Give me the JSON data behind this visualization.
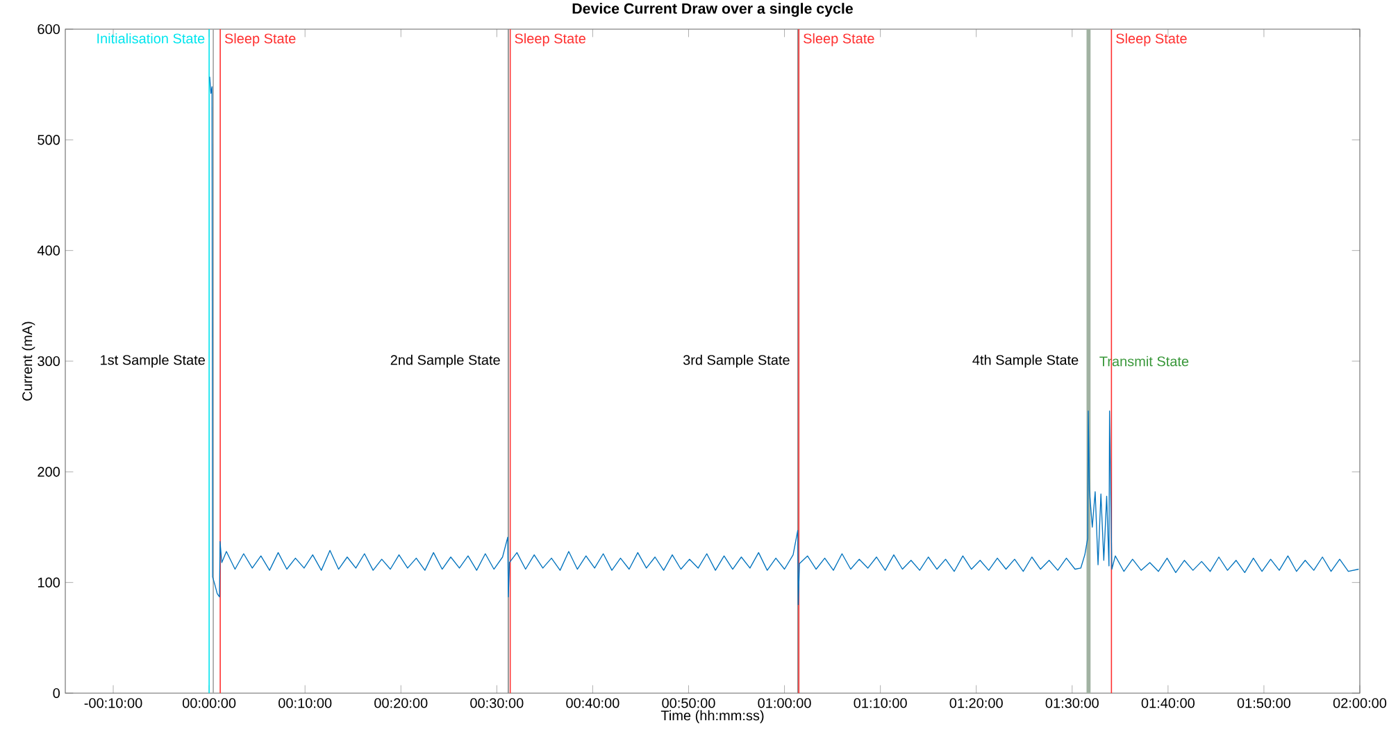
{
  "chart_data": {
    "type": "line",
    "title": "Device Current Draw over a single cycle",
    "xlabel": "Time (hh:mm:ss)",
    "ylabel": "Current (mA)",
    "xlim": [
      -0.25,
      2.0
    ],
    "ylim": [
      0,
      600
    ],
    "xticks": [
      {
        "value": -0.16667,
        "label": "-00:10:00"
      },
      {
        "value": 0,
        "label": "00:00:00"
      },
      {
        "value": 0.16667,
        "label": "00:10:00"
      },
      {
        "value": 0.33333,
        "label": "00:20:00"
      },
      {
        "value": 0.5,
        "label": "00:30:00"
      },
      {
        "value": 0.66667,
        "label": "00:40:00"
      },
      {
        "value": 0.83333,
        "label": "00:50:00"
      },
      {
        "value": 1.0,
        "label": "01:00:00"
      },
      {
        "value": 1.16667,
        "label": "01:10:00"
      },
      {
        "value": 1.33333,
        "label": "01:20:00"
      },
      {
        "value": 1.5,
        "label": "01:30:00"
      },
      {
        "value": 1.66667,
        "label": "01:40:00"
      },
      {
        "value": 1.83333,
        "label": "01:50:00"
      },
      {
        "value": 2.0,
        "label": "02:00:00"
      }
    ],
    "yticks": [
      0,
      100,
      200,
      300,
      400,
      500,
      600
    ],
    "grid": false,
    "marker": "none",
    "line_style": "solid",
    "series": [
      {
        "color": "#0072bd",
        "x": [
          0.001,
          0.003,
          0.005,
          0.006,
          0.01,
          0.014,
          0.018,
          0.019,
          0.022,
          0.03,
          0.045,
          0.06,
          0.075,
          0.09,
          0.105,
          0.12,
          0.135,
          0.15,
          0.165,
          0.18,
          0.195,
          0.21,
          0.225,
          0.24,
          0.255,
          0.27,
          0.285,
          0.3,
          0.315,
          0.33,
          0.345,
          0.36,
          0.375,
          0.39,
          0.405,
          0.42,
          0.435,
          0.45,
          0.465,
          0.48,
          0.495,
          0.51,
          0.519,
          0.52,
          0.522,
          0.535,
          0.55,
          0.565,
          0.58,
          0.595,
          0.61,
          0.625,
          0.64,
          0.655,
          0.67,
          0.685,
          0.7,
          0.715,
          0.73,
          0.745,
          0.76,
          0.775,
          0.79,
          0.805,
          0.82,
          0.835,
          0.85,
          0.865,
          0.88,
          0.895,
          0.91,
          0.925,
          0.94,
          0.955,
          0.97,
          0.985,
          1.0,
          1.015,
          1.023,
          1.024,
          1.026,
          1.04,
          1.055,
          1.07,
          1.085,
          1.1,
          1.115,
          1.13,
          1.145,
          1.16,
          1.175,
          1.19,
          1.205,
          1.22,
          1.235,
          1.25,
          1.265,
          1.28,
          1.295,
          1.31,
          1.325,
          1.34,
          1.355,
          1.37,
          1.385,
          1.4,
          1.415,
          1.43,
          1.445,
          1.46,
          1.475,
          1.49,
          1.505,
          1.515,
          1.522,
          1.527,
          1.528,
          1.53,
          1.535,
          1.54,
          1.545,
          1.55,
          1.555,
          1.56,
          1.564,
          1.565,
          1.567,
          1.569,
          1.575,
          1.59,
          1.605,
          1.62,
          1.635,
          1.65,
          1.665,
          1.68,
          1.695,
          1.71,
          1.725,
          1.74,
          1.755,
          1.77,
          1.785,
          1.8,
          1.815,
          1.83,
          1.845,
          1.86,
          1.875,
          1.89,
          1.905,
          1.92,
          1.935,
          1.95,
          1.965,
          1.98,
          1.998
        ],
        "values": [
          557,
          542,
          548,
          105,
          98,
          90,
          87,
          137,
          118,
          128,
          112,
          126,
          113,
          124,
          111,
          127,
          112,
          122,
          113,
          125,
          111,
          129,
          112,
          123,
          113,
          126,
          111,
          121,
          112,
          125,
          113,
          122,
          111,
          127,
          112,
          123,
          113,
          124,
          111,
          126,
          112,
          123,
          141,
          87,
          118,
          127,
          112,
          125,
          113,
          122,
          111,
          128,
          112,
          124,
          113,
          126,
          111,
          122,
          112,
          127,
          113,
          123,
          111,
          125,
          112,
          121,
          113,
          126,
          111,
          124,
          112,
          123,
          113,
          127,
          111,
          122,
          112,
          125,
          147,
          80,
          117,
          124,
          112,
          122,
          111,
          126,
          112,
          121,
          113,
          123,
          111,
          125,
          112,
          120,
          111,
          123,
          112,
          121,
          110,
          124,
          112,
          120,
          111,
          122,
          112,
          121,
          110,
          123,
          112,
          120,
          111,
          122,
          112,
          113,
          125,
          140,
          255,
          183,
          150,
          182,
          116,
          180,
          120,
          178,
          115,
          255,
          183,
          112,
          124,
          110,
          121,
          111,
          118,
          110,
          122,
          109,
          120,
          111,
          119,
          110,
          123,
          111,
          120,
          109,
          122,
          110,
          121,
          111,
          124,
          110,
          120,
          111,
          123,
          110,
          121,
          110,
          112
        ]
      }
    ],
    "ref_lines": [
      {
        "axis": "x",
        "value": 0,
        "label": "Initialisation State",
        "color": "#00e5ee"
      },
      {
        "axis": "x",
        "value": 0.0072,
        "color": "#a0a0a0"
      },
      {
        "axis": "x",
        "value": 0.0193,
        "label": "Sleep State",
        "color": "#ff3030"
      },
      {
        "axis": "x",
        "value": 0.52,
        "color": "#808080"
      },
      {
        "axis": "x",
        "value": 0.5233,
        "label": "Sleep State",
        "color": "#ff3030"
      },
      {
        "axis": "x",
        "value": 1.0233,
        "color": "#808080"
      },
      {
        "axis": "x",
        "value": 1.025,
        "label": "Sleep State",
        "color": "#ff3030"
      },
      {
        "axis": "x",
        "value": 1.5683,
        "label": "Sleep State",
        "color": "#ff3030"
      }
    ],
    "bands": [
      {
        "axis": "x",
        "from": 1.525,
        "to": 1.532,
        "label": "Transmit State",
        "color": "#a1b2a2"
      }
    ],
    "annotations": [
      {
        "text": "1st Sample State",
        "x": 0.0072,
        "y": 300
      },
      {
        "text": "2nd Sample State",
        "x": 0.52,
        "y": 300
      },
      {
        "text": "3rd Sample State",
        "x": 1.0233,
        "y": 300
      },
      {
        "text": "4th Sample State",
        "x": 1.525,
        "y": 300
      }
    ]
  }
}
